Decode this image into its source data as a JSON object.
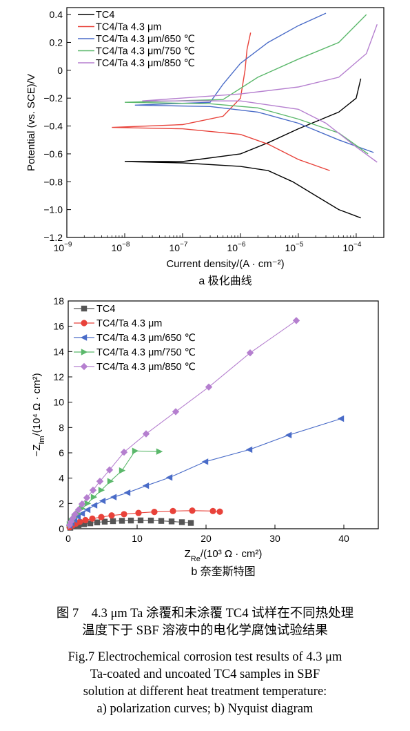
{
  "chart_data": [
    {
      "type": "line",
      "subtitle": "a 极化曲线",
      "xlabel": "Current density/(A · cm⁻²)",
      "ylabel": "Potential (vs. SCE)/V",
      "xscale": "log",
      "xlim": [
        1e-09,
        0.0003
      ],
      "ylim": [
        -1.2,
        0.45
      ],
      "xticks": [
        1e-09,
        1e-08,
        1e-07,
        1e-06,
        1e-05,
        0.0001
      ],
      "xtick_exponents": [
        "−9",
        "−8",
        "−7",
        "−6",
        "−5",
        "−4"
      ],
      "yticks": [
        "0.4",
        "0.2",
        "0",
        "−0.2",
        "−0.4",
        "−0.6",
        "−0.8",
        "−1.0",
        "−1.2"
      ],
      "ytick_values": [
        0.4,
        0.2,
        0,
        -0.2,
        -0.4,
        -0.6,
        -0.8,
        -1.0,
        -1.2
      ],
      "legend_position": "top-left",
      "series": [
        {
          "name": "TC4",
          "color": "#000000",
          "points": [
            [
              0.00012,
              -1.06
            ],
            [
              5e-05,
              -1.0
            ],
            [
              2e-05,
              -0.9
            ],
            [
              8e-06,
              -0.8
            ],
            [
              3e-06,
              -0.72
            ],
            [
              1e-06,
              -0.69
            ],
            [
              1e-07,
              -0.665
            ],
            [
              1e-08,
              -0.655
            ],
            [
              1e-07,
              -0.655
            ],
            [
              1e-06,
              -0.6
            ],
            [
              3e-06,
              -0.52
            ],
            [
              1e-05,
              -0.42
            ],
            [
              5e-05,
              -0.3
            ],
            [
              0.0001,
              -0.2
            ],
            [
              0.00012,
              -0.06
            ]
          ]
        },
        {
          "name": "TC4/Ta 4.3 μm",
          "color": "#e8423a",
          "points": [
            [
              3.5e-05,
              -0.72
            ],
            [
              1e-05,
              -0.64
            ],
            [
              3e-06,
              -0.53
            ],
            [
              1e-06,
              -0.46
            ],
            [
              1e-07,
              -0.42
            ],
            [
              6e-09,
              -0.41
            ],
            [
              1e-07,
              -0.39
            ],
            [
              5e-07,
              -0.33
            ],
            [
              1e-06,
              -0.2
            ],
            [
              1.2e-06,
              0.0
            ],
            [
              1.3e-06,
              0.15
            ],
            [
              1.5e-06,
              0.27
            ]
          ]
        },
        {
          "name": "TC4/Ta 4.3 μm/650 ℃",
          "color": "#4a6cc8",
          "points": [
            [
              0.0002,
              -0.59
            ],
            [
              5e-05,
              -0.5
            ],
            [
              1e-05,
              -0.38
            ],
            [
              2e-06,
              -0.3
            ],
            [
              3e-07,
              -0.26
            ],
            [
              1.5e-08,
              -0.25
            ],
            [
              3e-07,
              -0.23
            ],
            [
              5e-07,
              -0.1
            ],
            [
              1e-06,
              0.05
            ],
            [
              3e-06,
              0.2
            ],
            [
              1e-05,
              0.32
            ],
            [
              3e-05,
              0.41
            ]
          ]
        },
        {
          "name": "TC4/Ta 4.3 μm/750 ℃",
          "color": "#5bb86b",
          "points": [
            [
              0.00016,
              -0.6
            ],
            [
              5e-05,
              -0.45
            ],
            [
              1e-05,
              -0.35
            ],
            [
              2e-06,
              -0.27
            ],
            [
              3e-07,
              -0.24
            ],
            [
              1e-08,
              -0.23
            ],
            [
              5e-07,
              -0.21
            ],
            [
              2e-06,
              -0.05
            ],
            [
              1e-05,
              0.08
            ],
            [
              5e-05,
              0.2
            ],
            [
              0.00015,
              0.4
            ]
          ]
        },
        {
          "name": "TC4/Ta 4.3 μm/850 ℃",
          "color": "#b57fcf",
          "points": [
            [
              0.00023,
              -0.66
            ],
            [
              0.0001,
              -0.55
            ],
            [
              3e-05,
              -0.38
            ],
            [
              1e-05,
              -0.28
            ],
            [
              1e-06,
              -0.22
            ],
            [
              2e-08,
              -0.22
            ],
            [
              1e-06,
              -0.17
            ],
            [
              1e-05,
              -0.12
            ],
            [
              5e-05,
              -0.05
            ],
            [
              0.00015,
              0.12
            ],
            [
              0.00023,
              0.33
            ]
          ]
        }
      ]
    },
    {
      "type": "scatter",
      "subtitle": "b 奈奎斯特图",
      "xlabel_html": "Z<tspan baseline-shift=\"sub\" font-size=\"11\">Re</tspan>/(10³ Ω · cm²)",
      "ylabel_html": "−Z<tspan baseline-shift=\"sub\" font-size=\"11\">Im</tspan>/(10⁴ Ω · cm²)",
      "xlim": [
        0,
        45
      ],
      "ylim": [
        0,
        18
      ],
      "xticks": [
        0,
        10,
        20,
        30,
        40
      ],
      "yticks": [
        0,
        2,
        4,
        6,
        8,
        10,
        12,
        14,
        16,
        18
      ],
      "legend_position": "top-left",
      "series": [
        {
          "name": "TC4",
          "color": "#555555",
          "marker": "square",
          "x": [
            0.3,
            0.8,
            1.5,
            2.3,
            3.2,
            4.2,
            5.3,
            6.5,
            7.8,
            9.1,
            10.5,
            12,
            13.5,
            15,
            16.5,
            17.8
          ],
          "y": [
            0.08,
            0.18,
            0.28,
            0.36,
            0.43,
            0.5,
            0.56,
            0.6,
            0.63,
            0.65,
            0.66,
            0.65,
            0.62,
            0.58,
            0.52,
            0.46
          ]
        },
        {
          "name": "TC4/Ta 4.3 μm",
          "color": "#e8423a",
          "marker": "circle",
          "x": [
            0.2,
            0.6,
            1.1,
            1.7,
            2.5,
            3.5,
            4.8,
            6.3,
            8.1,
            10.2,
            12.5,
            15.2,
            18,
            21,
            22
          ],
          "y": [
            0.12,
            0.25,
            0.4,
            0.55,
            0.68,
            0.8,
            0.92,
            1.05,
            1.15,
            1.25,
            1.33,
            1.4,
            1.43,
            1.4,
            1.35
          ]
        },
        {
          "name": "TC4/Ta 4.3 μm/650 ℃",
          "color": "#4a6cc8",
          "marker": "triangle-left",
          "x": [
            0.2,
            0.5,
            0.9,
            1.4,
            2.0,
            2.8,
            3.8,
            5.0,
            6.6,
            8.6,
            11.3,
            14.7,
            19.9,
            26.3,
            32,
            39.6
          ],
          "y": [
            0.25,
            0.45,
            0.7,
            0.95,
            1.2,
            1.5,
            1.85,
            2.2,
            2.5,
            2.85,
            3.4,
            4.05,
            5.3,
            6.25,
            7.4,
            8.7
          ]
        },
        {
          "name": "TC4/Ta 4.3 μm/750 ℃",
          "color": "#5bb86b",
          "marker": "triangle-right",
          "x": [
            0.2,
            0.5,
            0.9,
            1.4,
            2.0,
            2.8,
            3.7,
            4.8,
            6.1,
            7.8,
            9.7,
            13.2
          ],
          "y": [
            0.35,
            0.6,
            0.9,
            1.2,
            1.6,
            2.0,
            2.5,
            3.05,
            3.75,
            4.6,
            6.15,
            6.1
          ]
        },
        {
          "name": "TC4/Ta 4.3 μm/850 ℃",
          "color": "#b57fcf",
          "marker": "diamond",
          "x": [
            0.2,
            0.4,
            0.7,
            1.0,
            1.5,
            2.0,
            2.7,
            3.6,
            4.6,
            6.0,
            8.1,
            11.3,
            15.6,
            20.4,
            26.4,
            33.1
          ],
          "y": [
            0.3,
            0.55,
            0.85,
            1.15,
            1.5,
            1.95,
            2.45,
            3.05,
            3.75,
            4.65,
            6.05,
            7.5,
            9.25,
            11.2,
            13.9,
            16.45
          ]
        }
      ]
    }
  ],
  "caption": {
    "cn_line1": "图 7　4.3 μm Ta 涂覆和未涂覆 TC4 试样在不同热处理",
    "cn_line2": "温度下于 SBF 溶液中的电化学腐蚀试验结果",
    "en_line1": "Fig.7 Electrochemical corrosion test results of 4.3 μm",
    "en_line2": "Ta-coated and uncoated TC4 samples in SBF",
    "en_line3": "solution at different heat treatment temperature:",
    "en_line4": "a) polarization curves; b) Nyquist diagram"
  }
}
